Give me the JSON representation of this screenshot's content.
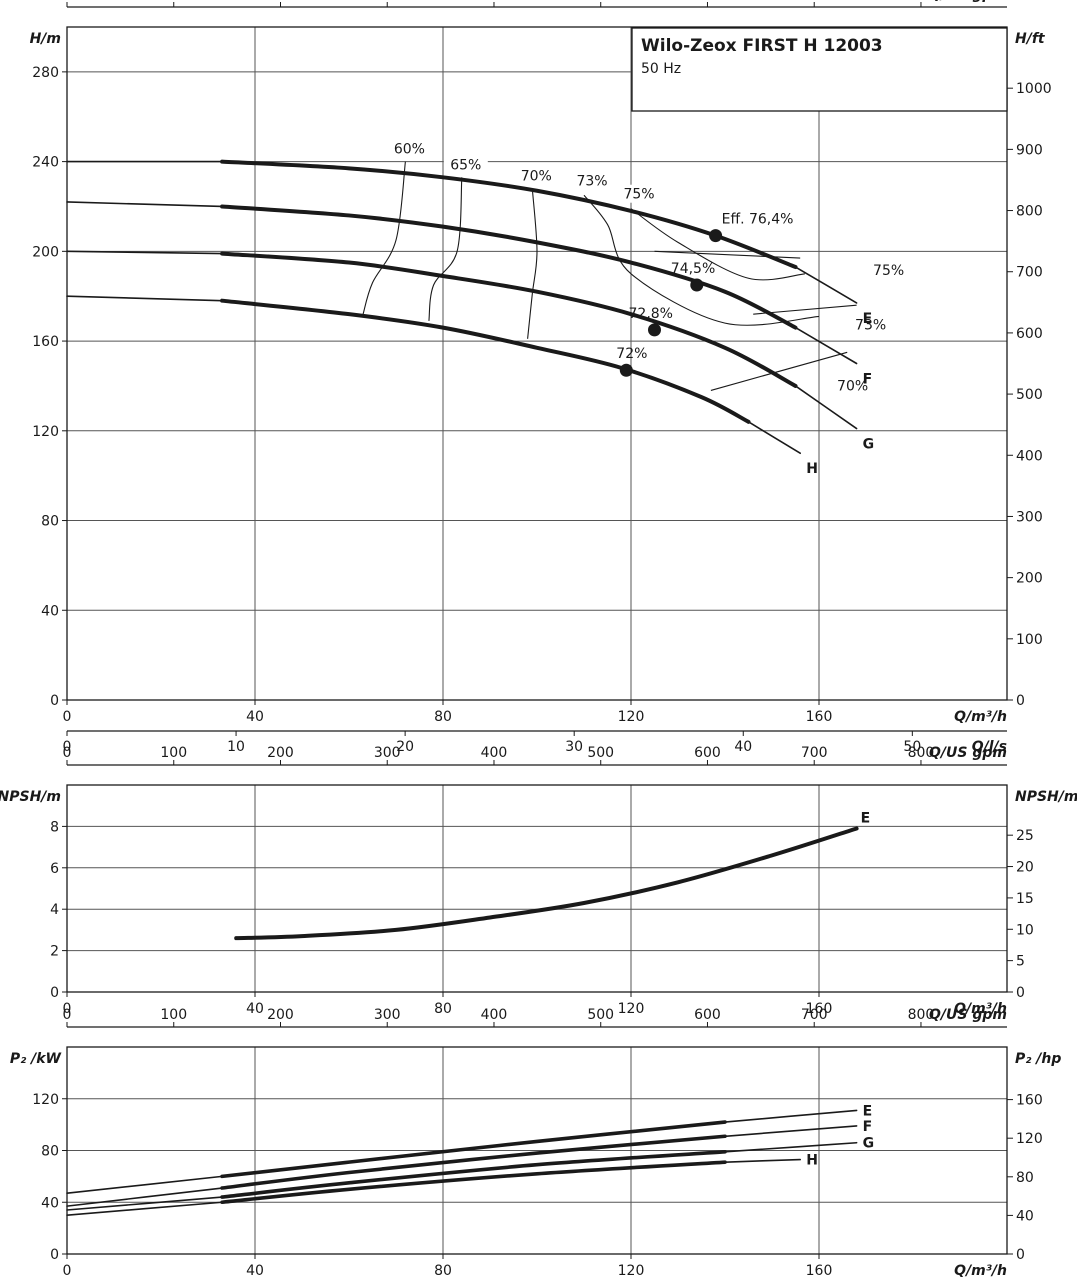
{
  "header": {
    "title": "Wilo-Zeox FIRST H 12003",
    "subtitle": "50 Hz"
  },
  "chart_data": [
    {
      "type": "line",
      "title": "Wilo-Zeox FIRST H 12003",
      "subtitle": "50 Hz",
      "xlabel": "Q/m³/h",
      "ylabel": "H/m",
      "y2label": "H/ft",
      "x2label": "Q/US gpm",
      "x3label": "Q/l/s",
      "xlim": [
        0,
        200
      ],
      "ylim": [
        0,
        300
      ],
      "y2lim": [
        0,
        1100
      ],
      "x2lim": [
        0,
        880.6
      ],
      "x3lim": [
        0,
        55.6
      ],
      "xticks": [
        "0",
        "40",
        "80",
        "120",
        "160"
      ],
      "yticks": [
        "0",
        "40",
        "80",
        "120",
        "160",
        "200",
        "240",
        "280"
      ],
      "y2ticks": [
        "0",
        "100",
        "200",
        "300",
        "400",
        "500",
        "600",
        "700",
        "800",
        "900",
        "1000"
      ],
      "x2ticks": [
        "0",
        "100",
        "200",
        "300",
        "400",
        "500",
        "600",
        "700",
        "800"
      ],
      "x3ticks": [
        "0",
        "10",
        "20",
        "30",
        "40",
        "50"
      ],
      "grid": true,
      "series": [
        {
          "name": "E",
          "x": [
            0,
            33,
            60,
            80,
            100,
            120,
            138,
            155,
            168
          ],
          "y": [
            240,
            240,
            237,
            233,
            227,
            218,
            207,
            193,
            177
          ]
        },
        {
          "name": "F",
          "x": [
            0,
            33,
            60,
            80,
            100,
            120,
            140,
            155,
            168
          ],
          "y": [
            222,
            220,
            216,
            211,
            204,
            195,
            182,
            166,
            150
          ]
        },
        {
          "name": "G",
          "x": [
            0,
            33,
            60,
            80,
            100,
            120,
            140,
            155,
            168
          ],
          "y": [
            200,
            199,
            195,
            189,
            182,
            172,
            157,
            140,
            121
          ]
        },
        {
          "name": "H",
          "x": [
            0,
            33,
            60,
            80,
            100,
            118,
            135,
            145,
            156
          ],
          "y": [
            180,
            178,
            172,
            166,
            157,
            148,
            135,
            124,
            110
          ]
        }
      ],
      "efficiency_lines": [
        {
          "label": "60%",
          "x": [
            63,
            65,
            70,
            72
          ],
          "y": [
            172,
            186,
            205,
            240
          ]
        },
        {
          "label": "65%",
          "x": [
            77,
            78,
            83,
            84
          ],
          "y": [
            169,
            185,
            200,
            233
          ]
        },
        {
          "label": "70%",
          "x": [
            98,
            99,
            100,
            99
          ],
          "y": [
            161,
            181,
            200,
            228
          ]
        },
        {
          "label": "73%",
          "x": [
            110,
            115,
            120,
            140,
            160
          ],
          "y": [
            225,
            212,
            190,
            168,
            171
          ]
        },
        {
          "label": "75%",
          "x": [
            120,
            130,
            145,
            157
          ],
          "y": [
            219,
            204,
            188,
            190
          ]
        }
      ],
      "efficiency_end_labels": [
        {
          "label": "75%",
          "curve": "E"
        },
        {
          "label": "73%",
          "curve": "F"
        },
        {
          "label": "70%",
          "curve": "G"
        }
      ],
      "bep_points": [
        {
          "curve": "E",
          "label": "Eff. 76,4%",
          "x": 138,
          "y": 207
        },
        {
          "curve": "F",
          "label": "74,5%",
          "x": 134,
          "y": 185
        },
        {
          "curve": "G",
          "label": "72,8%",
          "x": 125,
          "y": 165
        },
        {
          "curve": "H",
          "label": "72%",
          "x": 119,
          "y": 147
        }
      ]
    },
    {
      "type": "line",
      "xlabel": "Q/m³/h",
      "ylabel": "NPSH/m",
      "y2label": "NPSH/m",
      "x2label": "Q/US gpm",
      "xlim": [
        0,
        200
      ],
      "ylim": [
        0,
        10
      ],
      "y2lim": [
        0,
        33
      ],
      "x2lim": [
        0,
        880.6
      ],
      "xticks": [
        "0",
        "40",
        "80",
        "120",
        "160"
      ],
      "yticks": [
        "0",
        "2",
        "4",
        "6",
        "8"
      ],
      "y2ticks": [
        "0",
        "5",
        "10",
        "15",
        "20",
        "25"
      ],
      "x2ticks": [
        "0",
        "100",
        "200",
        "300",
        "400",
        "500",
        "600",
        "700",
        "800"
      ],
      "grid": true,
      "series": [
        {
          "name": "E",
          "x": [
            36,
            50,
            70,
            90,
            110,
            130,
            150,
            168
          ],
          "y": [
            2.6,
            2.7,
            3.0,
            3.6,
            4.3,
            5.3,
            6.6,
            7.9
          ]
        }
      ]
    },
    {
      "type": "line",
      "xlabel": "Q/m³/h",
      "ylabel": "P₂ /kW",
      "y2label": "P₂ /hp",
      "x2label": "Q/US gpm",
      "xlim": [
        0,
        200
      ],
      "ylim": [
        0,
        160
      ],
      "y2lim": [
        0,
        214.5
      ],
      "x2lim": [
        0,
        880.6
      ],
      "xticks": [
        "0",
        "40",
        "80",
        "120",
        "160"
      ],
      "yticks": [
        "0",
        "40",
        "80",
        "120"
      ],
      "y2ticks": [
        "0",
        "40",
        "80",
        "120",
        "160"
      ],
      "x2ticks": [
        "0",
        "100",
        "200",
        "300",
        "400",
        "500",
        "600",
        "700",
        "800"
      ],
      "grid": true,
      "series": [
        {
          "name": "E",
          "x": [
            0,
            33,
            60,
            100,
            140,
            168
          ],
          "y": [
            47,
            60,
            71,
            87,
            102,
            111
          ]
        },
        {
          "name": "F",
          "x": [
            0,
            33,
            60,
            100,
            140,
            168
          ],
          "y": [
            37,
            51,
            63,
            78,
            91,
            99
          ]
        },
        {
          "name": "G",
          "x": [
            0,
            33,
            60,
            100,
            140,
            168
          ],
          "y": [
            34,
            44,
            55,
            69,
            79,
            86
          ]
        },
        {
          "name": "H",
          "x": [
            0,
            33,
            60,
            100,
            140,
            156
          ],
          "y": [
            30,
            40,
            50,
            62,
            71,
            73
          ]
        }
      ]
    }
  ]
}
